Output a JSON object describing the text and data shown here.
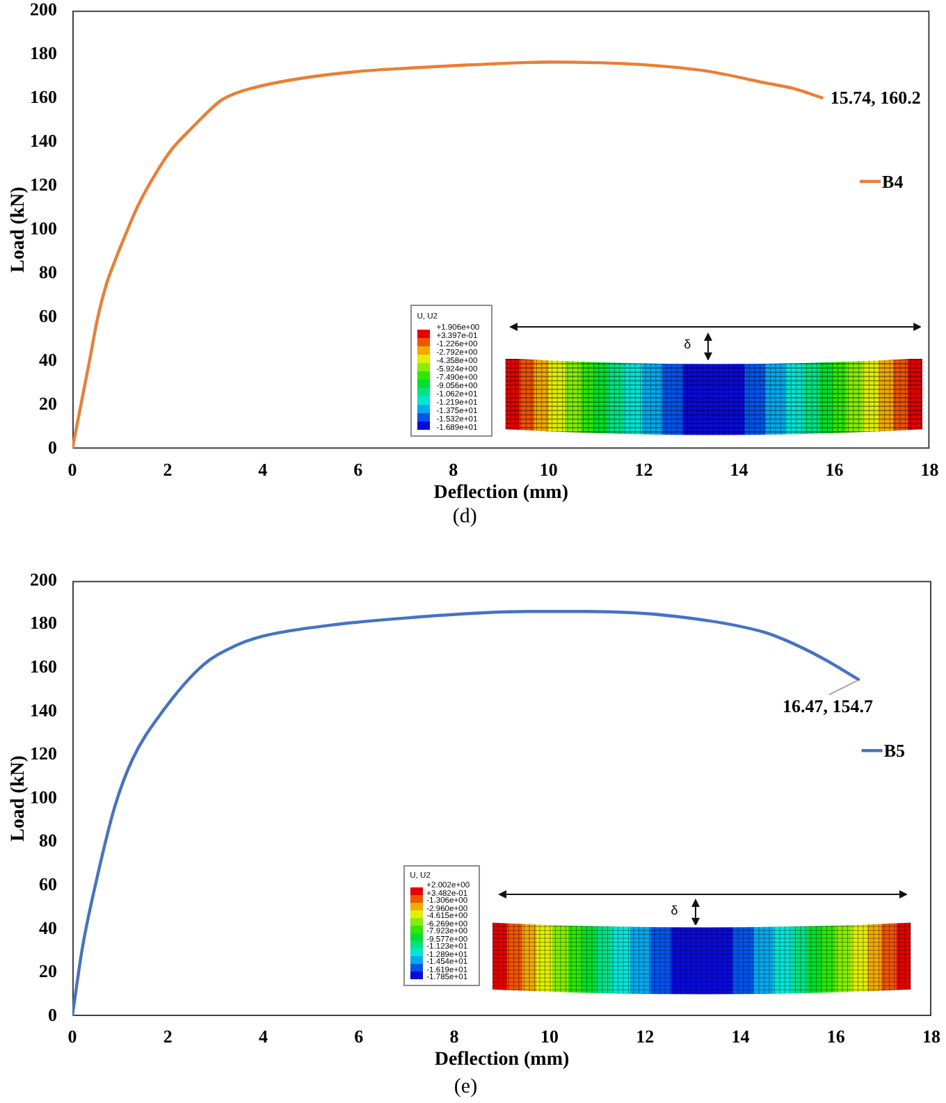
{
  "chart_data": [
    {
      "type": "line",
      "title": "(d)",
      "xlabel": "Deflection (mm)",
      "ylabel": "Load (kN)",
      "x": [
        0,
        0.18,
        0.36,
        0.52,
        0.71,
        0.89,
        1.14,
        1.38,
        1.76,
        2.1,
        2.49,
        2.74,
        3.12,
        3.4,
        3.74,
        4.61,
        5.85,
        7.09,
        8.33,
        10.06,
        11,
        12.05,
        13.29,
        14.53,
        15.15,
        15.74
      ],
      "series": [
        {
          "name": "B4",
          "color": "#ed7d31",
          "values": [
            0,
            20,
            40,
            58.5,
            74.7,
            85.5,
            99,
            111,
            126,
            137,
            146,
            151.5,
            159,
            162,
            164.4,
            168.4,
            171.9,
            173.8,
            175.2,
            176.5,
            176.2,
            175.2,
            172.5,
            167.1,
            164.4,
            160.2
          ]
        }
      ],
      "xlim": [
        0,
        18
      ],
      "xticks": [
        0,
        2,
        4,
        6,
        8,
        10,
        12,
        14,
        16,
        18
      ],
      "ylim": [
        0,
        200
      ],
      "yticks": [
        0,
        20,
        40,
        60,
        80,
        100,
        120,
        140,
        160,
        180,
        200
      ],
      "grid": false,
      "legend": "right",
      "marker": "none",
      "line_style": "solid",
      "annotations": [
        {
          "text": "15.74, 160.2",
          "x": 15.74,
          "y": 160.2
        },
        "U, U2",
        "+1.906e+00",
        "+3.397e-01",
        "-1.226e+00",
        "-2.792e+00",
        "-4.358e+00",
        "-5.924e+00",
        "-7.490e+00",
        "-9.056e+00",
        "-1.062e+01",
        "-1.219e+01",
        "-1.375e+01",
        "-1.532e+01",
        "-1.689e+01",
        "δ"
      ]
    },
    {
      "type": "line",
      "title": "(e)",
      "xlabel": "Deflection (mm)",
      "ylabel": "Load (kN)",
      "x": [
        0,
        0.21,
        0.52,
        0.89,
        1.26,
        1.88,
        2.75,
        3.36,
        3.98,
        5.22,
        7.08,
        9.55,
        10.79,
        12.64,
        14.5,
        14.99,
        15.74,
        16.47
      ],
      "series": [
        {
          "name": "B5",
          "color": "#4472c4",
          "values": [
            0,
            31.3,
            63.8,
            96.3,
            118,
            139.7,
            161.5,
            169.6,
            174.5,
            179.1,
            183.1,
            185.9,
            185.9,
            183.7,
            176.4,
            172.3,
            164.2,
            154.7
          ]
        }
      ],
      "xlim": [
        0,
        18
      ],
      "xticks": [
        0,
        2,
        4,
        6,
        8,
        10,
        12,
        14,
        16,
        18
      ],
      "ylim": [
        0,
        200
      ],
      "yticks": [
        0,
        20,
        40,
        60,
        80,
        100,
        120,
        140,
        160,
        180,
        200
      ],
      "grid": false,
      "legend": "right",
      "marker": "none",
      "line_style": "solid",
      "annotations": [
        {
          "text": "16.47, 154.7",
          "x": 16.47,
          "y": 154.7
        },
        "U, U2",
        "+2.002e+00",
        "+3.482e-01",
        "-1.306e+00",
        "-2.960e+00",
        "-4.615e+00",
        "-6.269e+00",
        "-7.923e+00",
        "-9.577e+00",
        "-1.123e+01",
        "-1.289e+01",
        "-1.454e+01",
        "-1.619e+01",
        "-1.785e+01",
        "δ"
      ]
    }
  ]
}
